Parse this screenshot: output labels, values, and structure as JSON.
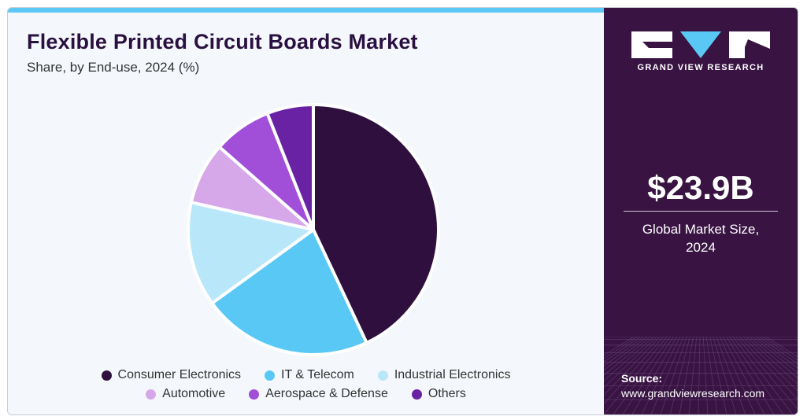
{
  "chart_data": {
    "type": "pie",
    "title": "Flexible Printed Circuit Boards Market",
    "subtitle": "Share, by End-use, 2024 (%)",
    "categories": [
      "Consumer Electronics",
      "IT & Telecom",
      "Industrial Electronics",
      "Automotive",
      "Aerospace & Defense",
      "Others"
    ],
    "values": [
      43,
      22,
      13.5,
      8,
      7.5,
      6
    ],
    "colors": [
      "#2e0f3e",
      "#5ac8f5",
      "#b8e7fa",
      "#d6a8ea",
      "#a14fd8",
      "#6a22a5"
    ],
    "legend_position": "bottom"
  },
  "legend": {
    "row1": [
      "Consumer Electronics",
      "IT & Telecom",
      "Industrial Electronics"
    ],
    "row2": [
      "Automotive",
      "Aerospace & Defense",
      "Others"
    ]
  },
  "sidebar": {
    "logo_text": "GRAND VIEW RESEARCH",
    "market_size": "$23.9B",
    "market_size_label_line1": "Global Market Size,",
    "market_size_label_line2": "2024",
    "source_label": "Source:",
    "source_url": "www.grandviewresearch.com"
  }
}
